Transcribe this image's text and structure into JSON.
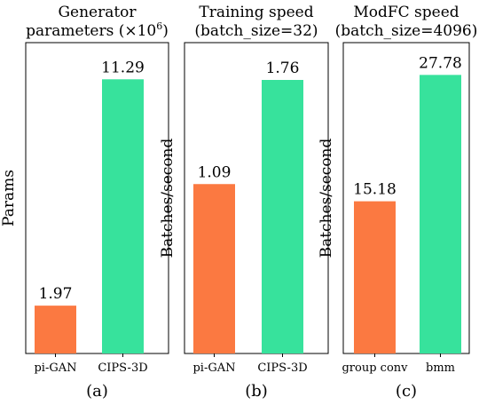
{
  "chart_data": [
    {
      "type": "bar",
      "title_line1": "Generator",
      "title_line2": "parameters (×10",
      "title_sup": "6",
      "title_close": ")",
      "ylabel": "Params",
      "caption": "(a)",
      "categories": [
        "pi-GAN",
        "CIPS-3D"
      ],
      "values": [
        1.97,
        11.29
      ],
      "value_labels": [
        "1.97",
        "11.29"
      ],
      "colors": [
        "#fb7941",
        "#37e29c"
      ],
      "ylim": [
        0,
        12.8
      ]
    },
    {
      "type": "bar",
      "title_line1": "Training speed",
      "title_line2": "(batch_size=32)",
      "ylabel": "Batches/second",
      "caption": "(b)",
      "categories": [
        "pi-GAN",
        "CIPS-3D"
      ],
      "values": [
        1.09,
        1.76
      ],
      "value_labels": [
        "1.09",
        "1.76"
      ],
      "colors": [
        "#fb7941",
        "#37e29c"
      ],
      "ylim": [
        0,
        2.0
      ]
    },
    {
      "type": "bar",
      "title_line1": "ModFC speed",
      "title_line2": "(batch_size=4096)",
      "ylabel": "Batches/second",
      "caption": "(c)",
      "categories": [
        "group conv",
        "bmm"
      ],
      "values": [
        15.18,
        27.78
      ],
      "value_labels": [
        "15.18",
        "27.78"
      ],
      "colors": [
        "#fb7941",
        "#37e29c"
      ],
      "ylim": [
        0,
        31.0
      ]
    }
  ]
}
